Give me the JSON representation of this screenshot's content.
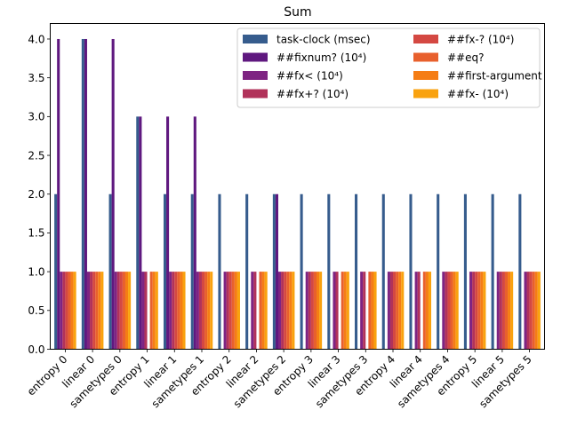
{
  "chart_data": {
    "type": "bar",
    "title": "Sum",
    "xlabel": "",
    "ylabel": "",
    "ylim": [
      0,
      4.2
    ],
    "yticks": [
      "0.0",
      "0.5",
      "1.0",
      "1.5",
      "2.0",
      "2.5",
      "3.0",
      "3.5",
      "4.0"
    ],
    "ytick_values": [
      0,
      0.5,
      1.0,
      1.5,
      2.0,
      2.5,
      3.0,
      3.5,
      4.0
    ],
    "legend_placement": "top-right",
    "categories": [
      "entropy 0",
      "linear 0",
      "sametypes 0",
      "entropy 1",
      "linear 1",
      "sametypes 1",
      "entropy 2",
      "linear 2",
      "sametypes 2",
      "entropy 3",
      "linear 3",
      "sametypes 3",
      "entropy 4",
      "linear 4",
      "sametypes 4",
      "entropy 5",
      "linear 5",
      "sametypes 5"
    ],
    "series": [
      {
        "name": "task-clock (msec)",
        "color": "#365c8d",
        "values": [
          2,
          4,
          2,
          3,
          2,
          2,
          2,
          2,
          2,
          2,
          2,
          2,
          2,
          2,
          2,
          2,
          2,
          2
        ]
      },
      {
        "name": "##fixnum? (10⁴)",
        "color": "#5f187f",
        "values": [
          4,
          4,
          4,
          3,
          3,
          3,
          0,
          0,
          2,
          0,
          0,
          0,
          0,
          0,
          0,
          0,
          0,
          0
        ]
      },
      {
        "name": "##fx< (10⁴)",
        "color": "#7e2482",
        "values": [
          1,
          1,
          1,
          1,
          1,
          1,
          1,
          1,
          1,
          1,
          1,
          1,
          1,
          1,
          1,
          1,
          1,
          1
        ]
      },
      {
        "name": "##fx+? (10⁴)",
        "color": "#b1325a",
        "values": [
          1,
          1,
          1,
          1,
          1,
          1,
          1,
          1,
          1,
          1,
          1,
          1,
          1,
          1,
          1,
          1,
          1,
          1
        ]
      },
      {
        "name": "##fx-? (10⁴)",
        "color": "#d44842",
        "values": [
          1,
          1,
          1,
          0,
          1,
          1,
          1,
          0,
          1,
          1,
          0,
          0,
          1,
          0,
          1,
          1,
          1,
          1
        ]
      },
      {
        "name": "##eq?",
        "color": "#e8602d",
        "values": [
          1,
          1,
          1,
          1,
          1,
          1,
          1,
          1,
          1,
          1,
          1,
          1,
          1,
          1,
          1,
          1,
          1,
          1
        ]
      },
      {
        "name": "##first-argument",
        "color": "#f57d15",
        "values": [
          1,
          1,
          1,
          1,
          1,
          1,
          1,
          1,
          1,
          1,
          1,
          1,
          1,
          1,
          1,
          1,
          1,
          1
        ]
      },
      {
        "name": "##fx- (10⁴)",
        "color": "#f9a20f",
        "values": [
          1,
          1,
          1,
          1,
          1,
          1,
          1,
          1,
          1,
          1,
          1,
          1,
          1,
          1,
          1,
          1,
          1,
          1
        ]
      }
    ]
  }
}
